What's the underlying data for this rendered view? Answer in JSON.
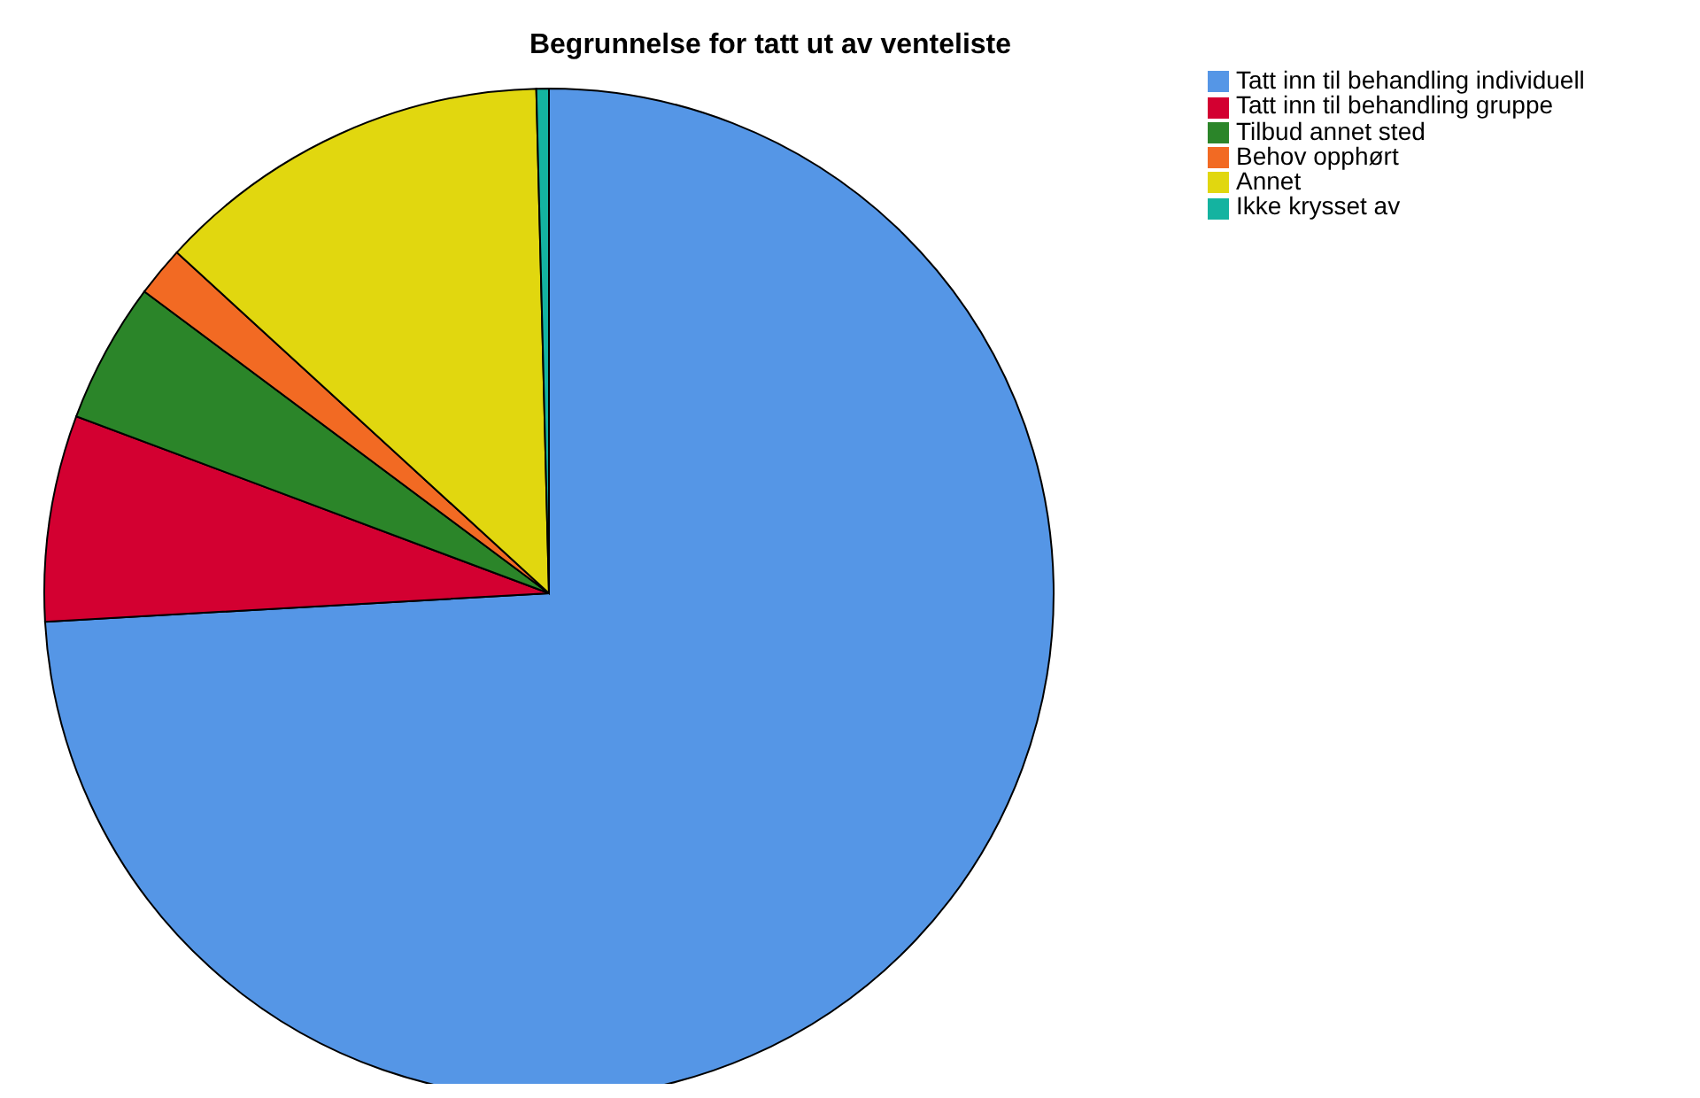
{
  "chart_data": {
    "type": "pie",
    "title": "Begrunnelse for tatt ut av venteliste",
    "categories": [
      "Tatt inn til behandling individuell",
      "Tatt inn til behandling gruppe",
      "Tilbud annet sted",
      "Behov opphørt",
      "Annet",
      "Ikke krysset av"
    ],
    "values": [
      74.1,
      6.6,
      4.5,
      1.6,
      12.8,
      0.4
    ],
    "colors": [
      "#5596e6",
      "#d30031",
      "#2b8529",
      "#f26a23",
      "#e1d70f",
      "#14b3a0"
    ],
    "legend": "top right"
  }
}
